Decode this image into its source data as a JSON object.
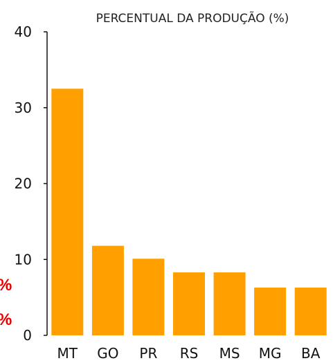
{
  "chart_data": {
    "type": "bar",
    "title": "PERCENTUAL DA PRODUÇÃO (%)",
    "xlabel": "",
    "ylabel": "",
    "categories": [
      "MT",
      "GO",
      "PR",
      "RS",
      "MS",
      "MG",
      "BA"
    ],
    "values": [
      32.5,
      11.8,
      10.1,
      8.3,
      8.3,
      6.3,
      6.3
    ],
    "ylim": [
      0,
      40
    ],
    "yticks": [
      0,
      10,
      20,
      30,
      40
    ],
    "bar_color": "#ffa000",
    "axis_color": "#111111",
    "grid": false,
    "legend": "none"
  },
  "fragments": {
    "color": "#e60000",
    "items": [
      "%",
      "%"
    ]
  }
}
